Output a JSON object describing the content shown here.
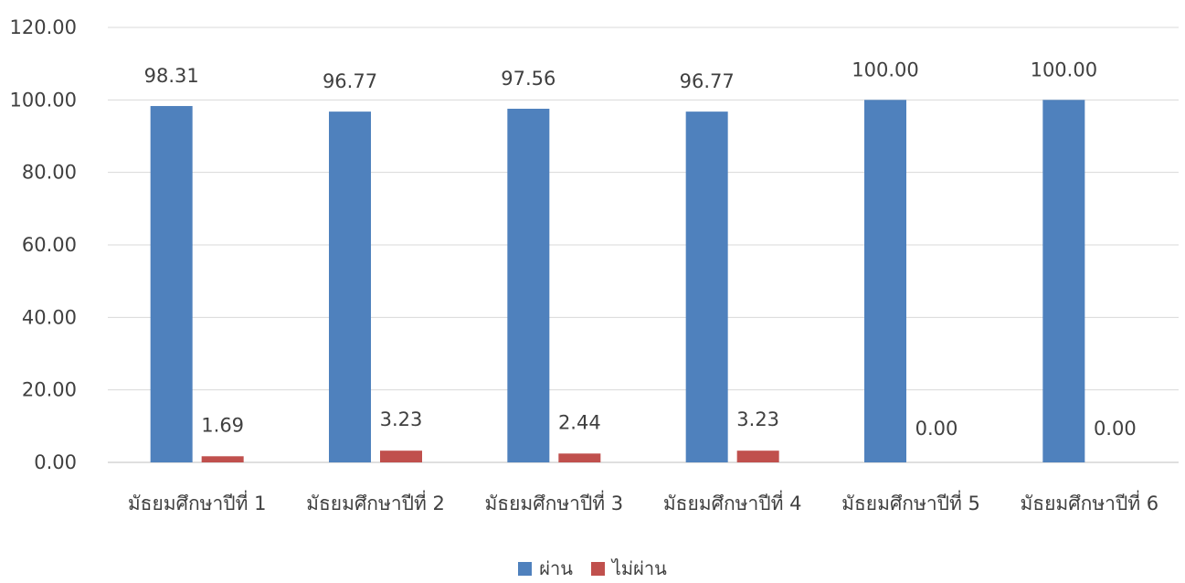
{
  "chart_data": {
    "type": "bar",
    "categories": [
      "มัธยมศึกษาปีที่ 1",
      "มัธยมศึกษาปีที่ 2",
      "มัธยมศึกษาปีที่ 3",
      "มัธยมศึกษาปีที่ 4",
      "มัธยมศึกษาปีที่ 5",
      "มัธยมศึกษาปีที่ 6"
    ],
    "series": [
      {
        "name": "ผ่าน",
        "color": "#4F81BD",
        "values": [
          98.31,
          96.77,
          97.56,
          96.77,
          100.0,
          100.0
        ],
        "labels": [
          "98.31",
          "96.77",
          "97.56",
          "96.77",
          "100.00",
          "100.00"
        ]
      },
      {
        "name": "ไม่ผ่าน",
        "color": "#C0504D",
        "values": [
          1.69,
          3.23,
          2.44,
          3.23,
          0.0,
          0.0
        ],
        "labels": [
          "1.69",
          "3.23",
          "2.44",
          "3.23",
          "0.00",
          "0.00"
        ]
      }
    ],
    "yticks": [
      "0.00",
      "20.00",
      "40.00",
      "60.00",
      "80.00",
      "100.00",
      "120.00"
    ],
    "ylim": [
      0,
      120
    ],
    "grid": true,
    "legend_position": "bottom"
  }
}
